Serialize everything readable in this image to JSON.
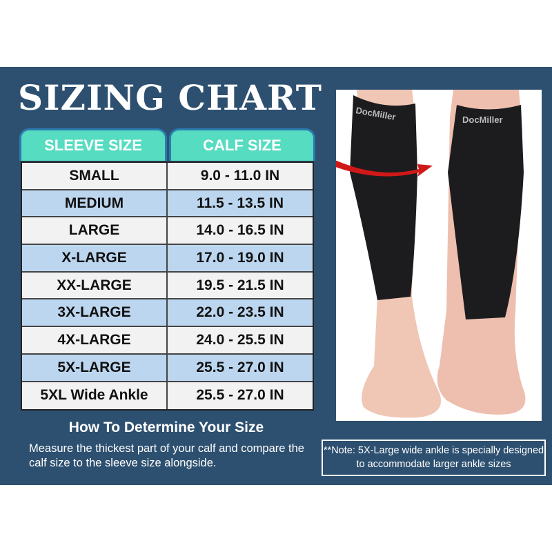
{
  "title": "SIZING CHART",
  "headers": [
    "SLEEVE SIZE",
    "CALF SIZE"
  ],
  "rows": [
    {
      "size": "SMALL",
      "calf": "9.0 - 11.0 IN"
    },
    {
      "size": "MEDIUM",
      "calf": "11.5 - 13.5 IN"
    },
    {
      "size": "LARGE",
      "calf": "14.0 - 16.5 IN"
    },
    {
      "size": "X-LARGE",
      "calf": "17.0 - 19.0 IN"
    },
    {
      "size": "XX-LARGE",
      "calf": "19.5 - 21.5 IN"
    },
    {
      "size": "3X-LARGE",
      "calf": "22.0 - 23.5 IN"
    },
    {
      "size": "4X-LARGE",
      "calf": "24.0 - 25.5 IN"
    },
    {
      "size": "5X-LARGE",
      "calf": "25.5 - 27.0 IN"
    },
    {
      "size": "5XL Wide Ankle",
      "calf": "25.5 - 27.0 IN"
    }
  ],
  "how_title": "How To Determine Your Size",
  "how_text": "Measure the thickest part of your calf and compare the calf size to the sleeve size alongside.",
  "note": "**Note: 5X-Large wide ankle is specially designed to accommodate larger ankle sizes",
  "brand": "DocMiller",
  "colors": {
    "panel": "#2e5070",
    "header": "#56dcc0",
    "row_light": "#f2f2f2",
    "row_blue": "#bcd6ef",
    "arrow": "#d01818"
  }
}
